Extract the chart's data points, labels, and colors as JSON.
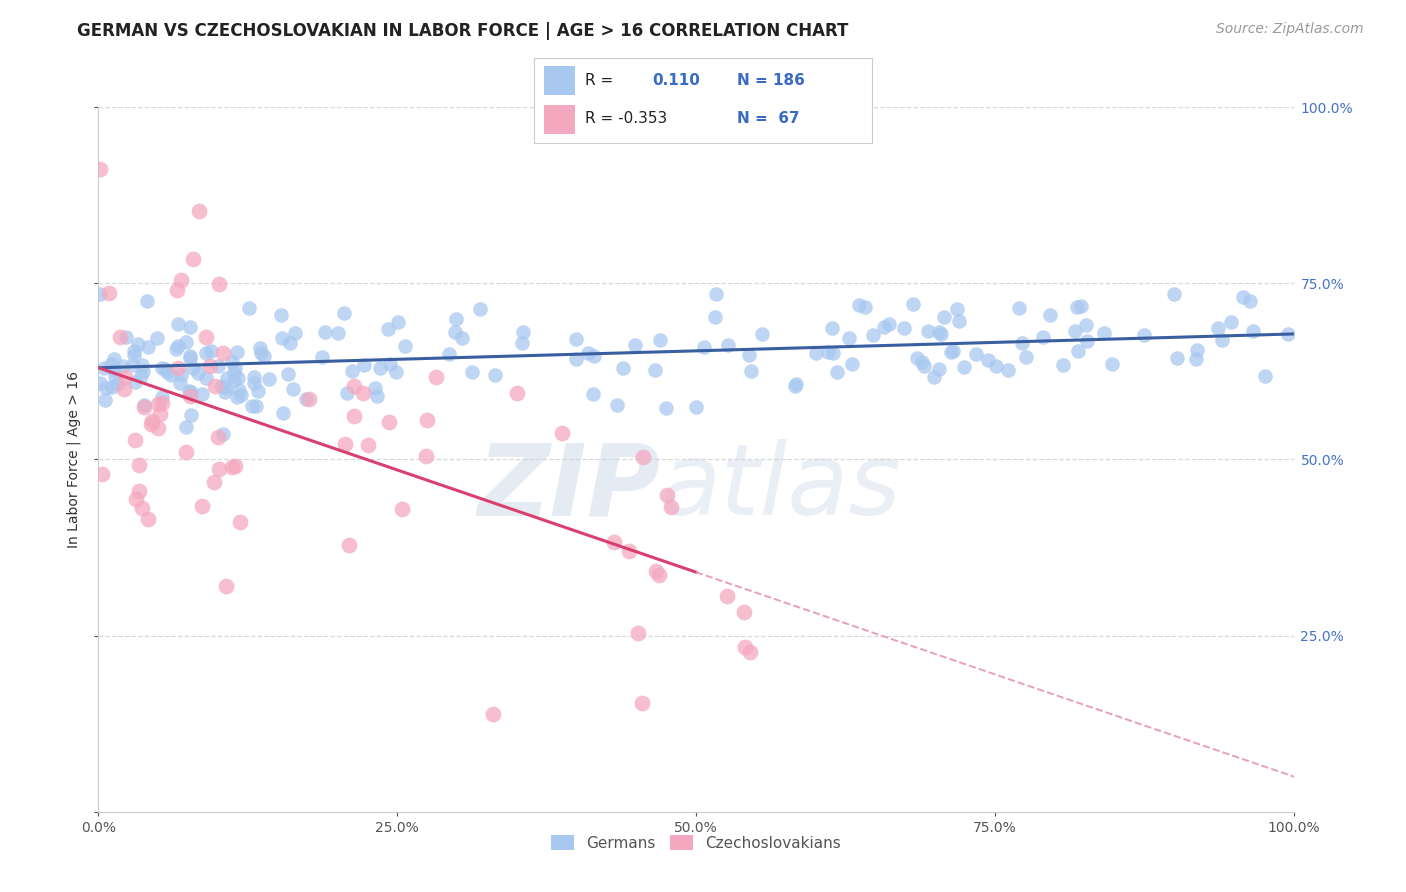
{
  "title": "GERMAN VS CZECHOSLOVAKIAN IN LABOR FORCE | AGE > 16 CORRELATION CHART",
  "source": "Source: ZipAtlas.com",
  "ylabel": "In Labor Force | Age > 16",
  "xlim": [
    0.0,
    1.0
  ],
  "ylim": [
    0.0,
    1.0
  ],
  "xticks": [
    0.0,
    0.25,
    0.5,
    0.75,
    1.0
  ],
  "yticks": [
    0.0,
    0.25,
    0.5,
    0.75,
    1.0
  ],
  "xtick_labels": [
    "0.0%",
    "25.0%",
    "50.0%",
    "75.0%",
    "100.0%"
  ],
  "ytick_labels_right": [
    "",
    "25.0%",
    "50.0%",
    "75.0%",
    "100.0%"
  ],
  "blue_color": "#a8c8f0",
  "blue_line_color": "#3a5fa0",
  "pink_color": "#f4a8c0",
  "pink_line_color": "#d94070",
  "pink_dash_color": "#e8a0b8",
  "r_blue": 0.11,
  "n_blue": 186,
  "r_pink": -0.353,
  "n_pink": 67,
  "blue_intercept": 0.63,
  "blue_slope": 0.048,
  "pink_intercept": 0.63,
  "pink_slope": -0.58,
  "background_color": "#ffffff",
  "grid_color": "#d8d8d8",
  "title_fontsize": 12,
  "source_fontsize": 10,
  "axis_fontsize": 10,
  "legend_fontsize": 11,
  "seed": 99
}
